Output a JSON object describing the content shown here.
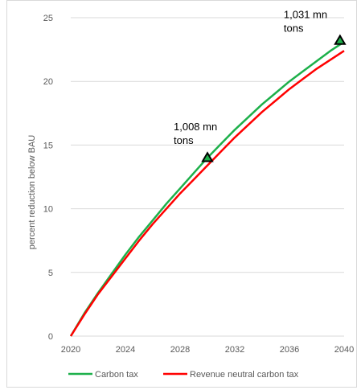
{
  "chart_data": {
    "type": "line",
    "title": "",
    "xlabel": "",
    "ylabel": "percent reduction below BAU",
    "xlim": [
      2020,
      2040
    ],
    "ylim": [
      0,
      25
    ],
    "x_ticks": [
      2020,
      2024,
      2028,
      2032,
      2036,
      2040
    ],
    "y_ticks": [
      0,
      5,
      10,
      15,
      20,
      25
    ],
    "grid": "horizontal",
    "legend_position": "bottom",
    "x": [
      2020,
      2021,
      2022,
      2023,
      2024,
      2025,
      2026,
      2027,
      2028,
      2029,
      2030,
      2031,
      2032,
      2033,
      2034,
      2035,
      2036,
      2037,
      2038,
      2039,
      2040
    ],
    "series": [
      {
        "name": "Carbon tax",
        "color": "#1db04a",
        "values": [
          0,
          1.8,
          3.4,
          4.9,
          6.4,
          7.8,
          9.1,
          10.4,
          11.6,
          12.8,
          14.0,
          15.1,
          16.2,
          17.2,
          18.2,
          19.1,
          20.0,
          20.8,
          21.6,
          22.4,
          23.1
        ]
      },
      {
        "name": "Revenue neutral carbon tax",
        "color": "#ff0000",
        "values": [
          0,
          1.7,
          3.3,
          4.7,
          6.1,
          7.5,
          8.8,
          10.0,
          11.2,
          12.3,
          13.4,
          14.5,
          15.6,
          16.6,
          17.6,
          18.5,
          19.4,
          20.2,
          21.0,
          21.7,
          22.4
        ]
      }
    ],
    "annotations": [
      {
        "x": 2030,
        "y": 14.0,
        "text_line1": "1,008 mn",
        "text_line2": "tons",
        "marker": "triangle"
      },
      {
        "x": 2039.7,
        "y": 23.2,
        "text_line1": "1,031 mn",
        "text_line2": "tons",
        "marker": "triangle"
      }
    ]
  }
}
